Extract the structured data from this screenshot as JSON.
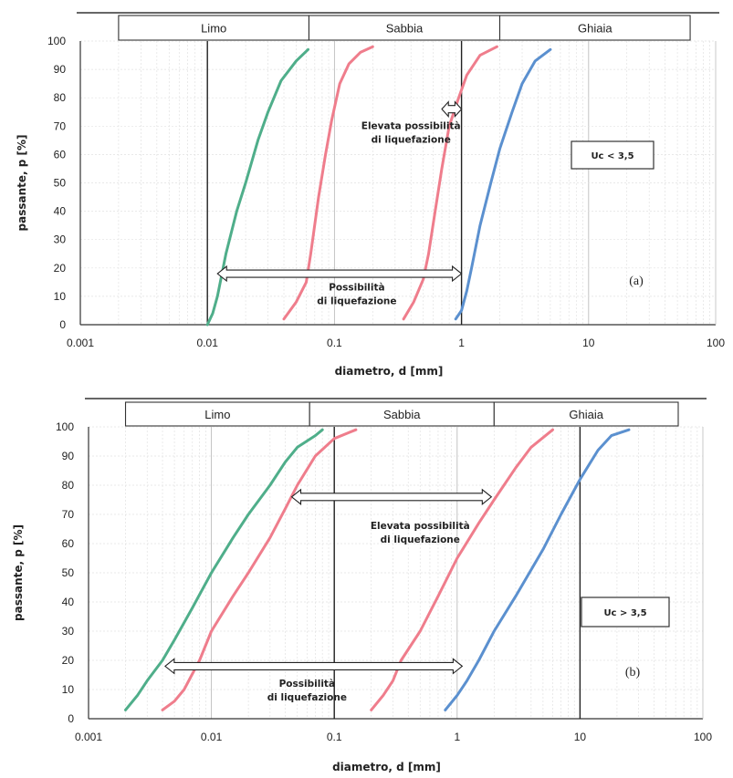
{
  "chart_data": [
    {
      "type": "line",
      "panel_label": "(a)",
      "x_scale": "log",
      "xlim": [
        0.001,
        100
      ],
      "ylim": [
        0,
        100
      ],
      "xticks": [
        "0.001",
        "0.01",
        "0.1",
        "1",
        "10",
        "100"
      ],
      "yticks": [
        "0",
        "10",
        "20",
        "30",
        "40",
        "50",
        "60",
        "70",
        "80",
        "90",
        "100"
      ],
      "xlabel": "diametro, d [mm]",
      "ylabel": "passante, p [%]",
      "bands": [
        {
          "label": "Limo",
          "from": 0.002,
          "to": 0.063
        },
        {
          "label": "Sabbia",
          "from": 0.063,
          "to": 2
        },
        {
          "label": "Ghiaia",
          "from": 2,
          "to": 63
        }
      ],
      "verticals": [
        0.01,
        1
      ],
      "series": [
        {
          "color": "#4fae8a",
          "points": [
            [
              0.01,
              0
            ],
            [
              0.011,
              4
            ],
            [
              0.012,
              10
            ],
            [
              0.014,
              25
            ],
            [
              0.017,
              40
            ],
            [
              0.02,
              50
            ],
            [
              0.025,
              65
            ],
            [
              0.03,
              75
            ],
            [
              0.038,
              86
            ],
            [
              0.05,
              93
            ],
            [
              0.062,
              97
            ]
          ]
        },
        {
          "color": "#ef7d8c",
          "points": [
            [
              0.04,
              2
            ],
            [
              0.05,
              8
            ],
            [
              0.06,
              15
            ],
            [
              0.065,
              25
            ],
            [
              0.075,
              45
            ],
            [
              0.085,
              60
            ],
            [
              0.095,
              72
            ],
            [
              0.11,
              85
            ],
            [
              0.13,
              92
            ],
            [
              0.16,
              96
            ],
            [
              0.2,
              98
            ]
          ]
        },
        {
          "color": "#ef7d8c",
          "points": [
            [
              0.35,
              2
            ],
            [
              0.42,
              8
            ],
            [
              0.5,
              16
            ],
            [
              0.55,
              25
            ],
            [
              0.62,
              40
            ],
            [
              0.7,
              55
            ],
            [
              0.8,
              70
            ],
            [
              0.95,
              80
            ],
            [
              1.1,
              88
            ],
            [
              1.4,
              95
            ],
            [
              1.9,
              98
            ]
          ]
        },
        {
          "color": "#5b90cf",
          "points": [
            [
              0.9,
              2
            ],
            [
              1.0,
              5
            ],
            [
              1.1,
              12
            ],
            [
              1.2,
              20
            ],
            [
              1.4,
              35
            ],
            [
              1.7,
              50
            ],
            [
              2.0,
              62
            ],
            [
              2.5,
              75
            ],
            [
              3.0,
              85
            ],
            [
              3.8,
              93
            ],
            [
              5.0,
              97
            ]
          ]
        }
      ],
      "arrows": [
        {
          "from": 0.7,
          "to": 1.0,
          "y": 76
        },
        {
          "from": 0.012,
          "to": 1.0,
          "y": 18
        }
      ],
      "annotations": [
        {
          "lines": [
            "Elevata possibilità",
            "di liquefazione"
          ],
          "x": 0.4,
          "y": 69
        },
        {
          "lines": [
            "Possibilità",
            "di liquefazione"
          ],
          "x": 0.15,
          "y": 12
        }
      ],
      "box_label": "Uc < 3,5"
    },
    {
      "type": "line",
      "panel_label": "(b)",
      "x_scale": "log",
      "xlim": [
        0.001,
        100
      ],
      "ylim": [
        0,
        100
      ],
      "xticks": [
        "0.001",
        "0.01",
        "0.1",
        "1",
        "10",
        "100"
      ],
      "yticks": [
        "0",
        "10",
        "20",
        "30",
        "40",
        "50",
        "60",
        "70",
        "80",
        "90",
        "100"
      ],
      "xlabel": "diametro, d [mm]",
      "ylabel": "passante, p [%]",
      "bands": [
        {
          "label": "Limo",
          "from": 0.002,
          "to": 0.063
        },
        {
          "label": "Sabbia",
          "from": 0.063,
          "to": 2
        },
        {
          "label": "Ghiaia",
          "from": 2,
          "to": 63
        }
      ],
      "verticals": [
        0.1,
        10
      ],
      "series": [
        {
          "color": "#4fae8a",
          "points": [
            [
              0.002,
              3
            ],
            [
              0.0025,
              8
            ],
            [
              0.003,
              13
            ],
            [
              0.004,
              20
            ],
            [
              0.005,
              27
            ],
            [
              0.007,
              38
            ],
            [
              0.01,
              50
            ],
            [
              0.015,
              62
            ],
            [
              0.02,
              70
            ],
            [
              0.03,
              80
            ],
            [
              0.04,
              88
            ],
            [
              0.05,
              93
            ],
            [
              0.07,
              97
            ],
            [
              0.08,
              99
            ]
          ]
        },
        {
          "color": "#ef7d8c",
          "points": [
            [
              0.004,
              3
            ],
            [
              0.005,
              6
            ],
            [
              0.006,
              10
            ],
            [
              0.008,
              20
            ],
            [
              0.01,
              30
            ],
            [
              0.015,
              42
            ],
            [
              0.02,
              50
            ],
            [
              0.03,
              62
            ],
            [
              0.04,
              72
            ],
            [
              0.05,
              80
            ],
            [
              0.07,
              90
            ],
            [
              0.1,
              96
            ],
            [
              0.15,
              99
            ]
          ]
        },
        {
          "color": "#ef7d8c",
          "points": [
            [
              0.2,
              3
            ],
            [
              0.25,
              8
            ],
            [
              0.3,
              13
            ],
            [
              0.35,
              20
            ],
            [
              0.5,
              30
            ],
            [
              0.7,
              42
            ],
            [
              1.0,
              55
            ],
            [
              1.5,
              67
            ],
            [
              2.0,
              75
            ],
            [
              3.0,
              86
            ],
            [
              4.0,
              93
            ],
            [
              6.0,
              99
            ]
          ]
        },
        {
          "color": "#5b90cf",
          "points": [
            [
              0.8,
              3
            ],
            [
              1.0,
              8
            ],
            [
              1.2,
              13
            ],
            [
              1.5,
              20
            ],
            [
              2.0,
              30
            ],
            [
              3.0,
              42
            ],
            [
              5.0,
              58
            ],
            [
              7.0,
              70
            ],
            [
              10.0,
              82
            ],
            [
              14.0,
              92
            ],
            [
              18.0,
              97
            ],
            [
              25.0,
              99
            ]
          ]
        }
      ],
      "arrows": [
        {
          "from": 0.045,
          "to": 1.9,
          "y": 76
        },
        {
          "from": 0.0042,
          "to": 1.1,
          "y": 18
        }
      ],
      "annotations": [
        {
          "lines": [
            "Elevata possibilità",
            "di liquefazione"
          ],
          "x": 0.5,
          "y": 65
        },
        {
          "lines": [
            "Possibilità",
            "di liquefazione"
          ],
          "x": 0.06,
          "y": 11
        }
      ],
      "box_label": "Uc > 3,5"
    }
  ]
}
